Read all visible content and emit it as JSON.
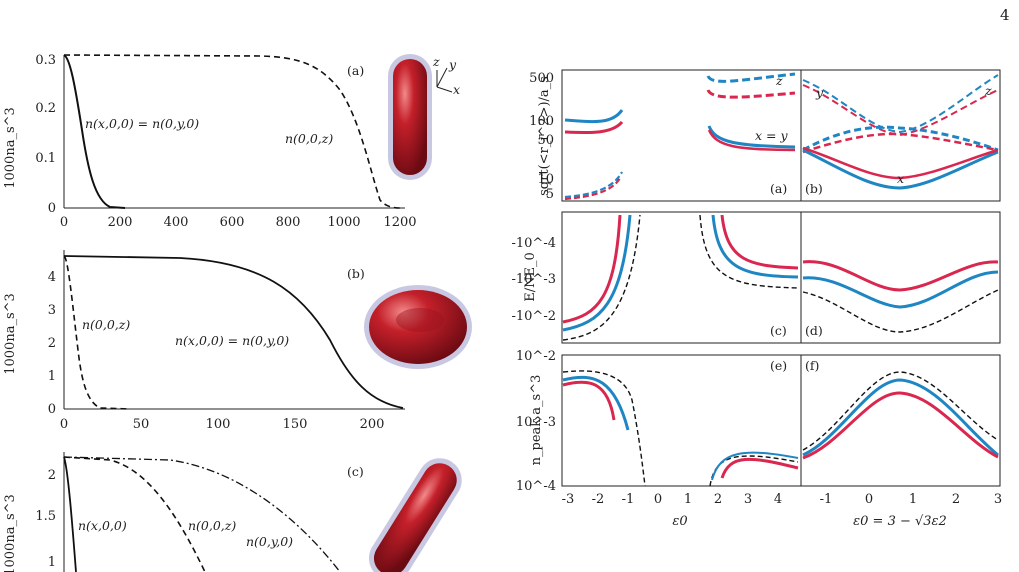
{
  "page_number": "4",
  "left_panels": {
    "a": {
      "label": "(a)",
      "ylabel": "1000na_s^3",
      "xticks": [
        "0",
        "200",
        "400",
        "600",
        "800",
        "1000",
        "1200"
      ],
      "yticks": [
        "0",
        "0.1",
        "0.2",
        "0.3"
      ],
      "curve_labels": [
        "n(x,0,0) = n(0,y,0)",
        "n(0,0,z)"
      ],
      "axis_labels": [
        "z",
        "y",
        "x"
      ]
    },
    "b": {
      "label": "(b)",
      "ylabel": "1000na_s^3",
      "xticks": [
        "0",
        "50",
        "100",
        "150",
        "200"
      ],
      "yticks": [
        "0",
        "1",
        "2",
        "3",
        "4"
      ],
      "curve_labels": [
        "n(0,0,z)",
        "n(x,0,0) = n(0,y,0)"
      ]
    },
    "c": {
      "label": "(c)",
      "ylabel": "1000na_s^3",
      "yticks": [
        "1",
        "1.5",
        "2"
      ],
      "curve_labels": [
        "n(x,0,0)",
        "n(0,0,z)",
        "n(0,y,0)"
      ]
    }
  },
  "right_panels": {
    "row1_ylabel": "sqrt(<r_i^2>)/a_s",
    "row1_yticks": [
      "5",
      "10",
      "50",
      "100",
      "500"
    ],
    "row2_ylabel": "E/NE_0",
    "row2_yticks": [
      "-10^-4",
      "-10^-3",
      "-10^-2"
    ],
    "row3_ylabel": "n_peak a_s^3",
    "row3_yticks": [
      "10^-2",
      "10^-3",
      "10^-4"
    ],
    "xticks_left": [
      "-3",
      "-2",
      "-1",
      "0",
      "1",
      "2",
      "3",
      "4"
    ],
    "xticks_right": [
      "-1",
      "0",
      "1",
      "2",
      "3"
    ],
    "xlabel_left": "ε0",
    "xlabel_right": "ε0 = 3 − √3ε2",
    "panel_labels": [
      "(a)",
      "(b)",
      "(c)",
      "(d)",
      "(e)",
      "(f)"
    ],
    "curve_labels_a": [
      "z",
      "x = y"
    ],
    "curve_labels_b": [
      "y",
      "z",
      "x"
    ]
  },
  "colors": {
    "blue": "#1f86c4",
    "red": "#d9274f",
    "black": "#111111",
    "drop": "#a6121f",
    "halo": "#c9c8e3"
  }
}
